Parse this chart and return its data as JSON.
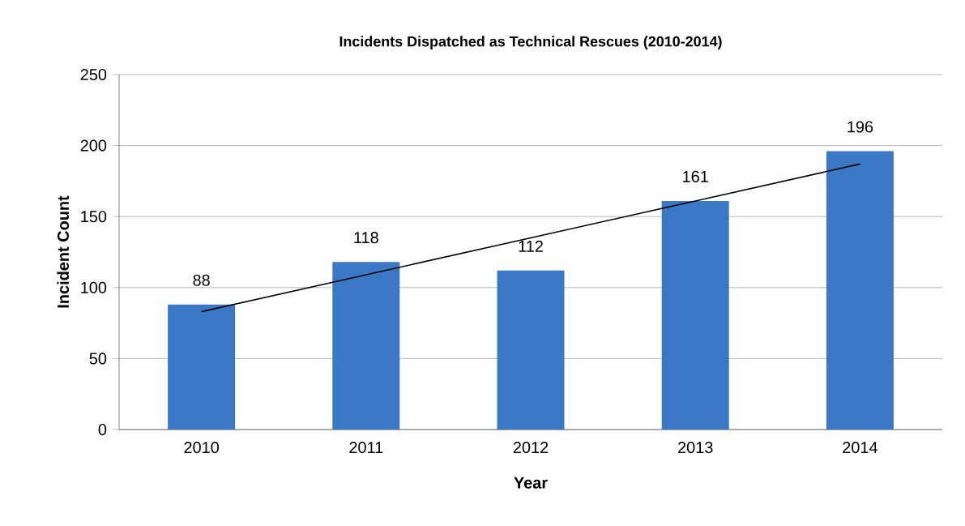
{
  "chart_data": {
    "type": "bar",
    "title": "Incidents Dispatched as Technical Rescues (2010-2014)",
    "xlabel": "Year",
    "ylabel": "Incident Count",
    "categories": [
      "2010",
      "2011",
      "2012",
      "2013",
      "2014"
    ],
    "series": [
      {
        "color": "#3a78c6",
        "values": [
          88,
          118,
          112,
          161,
          196
        ],
        "value_labels": [
          "88",
          "118",
          "112",
          "161",
          "196"
        ]
      },
      {
        "type": "line",
        "color": "#000000",
        "values": [
          83,
          109,
          135,
          161,
          187
        ]
      }
    ],
    "ylim": [
      0,
      250
    ],
    "yticks": [
      0,
      50,
      100,
      150,
      200,
      250
    ],
    "grid": "y"
  }
}
